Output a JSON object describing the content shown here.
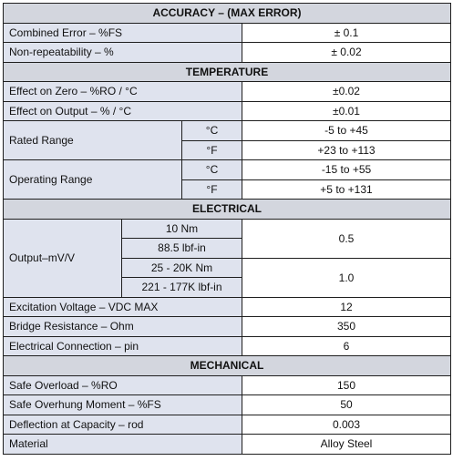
{
  "sections": {
    "accuracy": "ACCURACY – (MAX ERROR)",
    "temperature": "TEMPERATURE",
    "electrical": "ELECTRICAL",
    "mechanical": "MECHANICAL"
  },
  "accuracy": {
    "combined_error": {
      "label": "Combined Error – %FS",
      "value": "± 0.1"
    },
    "non_repeatability": {
      "label": "Non-repeatability – %",
      "value": "± 0.02"
    }
  },
  "temperature": {
    "effect_zero": {
      "label": "Effect on Zero – %RO / °C",
      "value": "±0.02"
    },
    "effect_output": {
      "label": "Effect on Output – % / °C",
      "value": "±0.01"
    },
    "rated_range": {
      "label": "Rated Range",
      "c_unit": "°C",
      "c_value": "-5 to +45",
      "f_unit": "°F",
      "f_value": "+23 to +113"
    },
    "operating_range": {
      "label": "Operating Range",
      "c_unit": "°C",
      "c_value": "-15 to +55",
      "f_unit": "°F",
      "f_value": "+5 to +131"
    }
  },
  "electrical": {
    "output": {
      "label": "Output–mV/V",
      "cap1_nm": "10 Nm",
      "cap1_lbf": "88.5 lbf-in",
      "cap1_value": "0.5",
      "cap2_nm": "25 - 20K Nm",
      "cap2_lbf": "221 - 177K lbf-in",
      "cap2_value": "1.0"
    },
    "excitation": {
      "label": "Excitation Voltage – VDC MAX",
      "value": "12"
    },
    "bridge": {
      "label": "Bridge Resistance – Ohm",
      "value": "350"
    },
    "connection": {
      "label": "Electrical Connection – pin",
      "value": "6"
    }
  },
  "mechanical": {
    "safe_overload": {
      "label": "Safe Overload – %RO",
      "value": "150"
    },
    "overhung": {
      "label": "Safe Overhung Moment – %FS",
      "value": "50"
    },
    "deflection": {
      "label": "Deflection at Capacity – rod",
      "value": "0.003"
    },
    "material": {
      "label": "Material",
      "value": "Alloy Steel"
    }
  }
}
